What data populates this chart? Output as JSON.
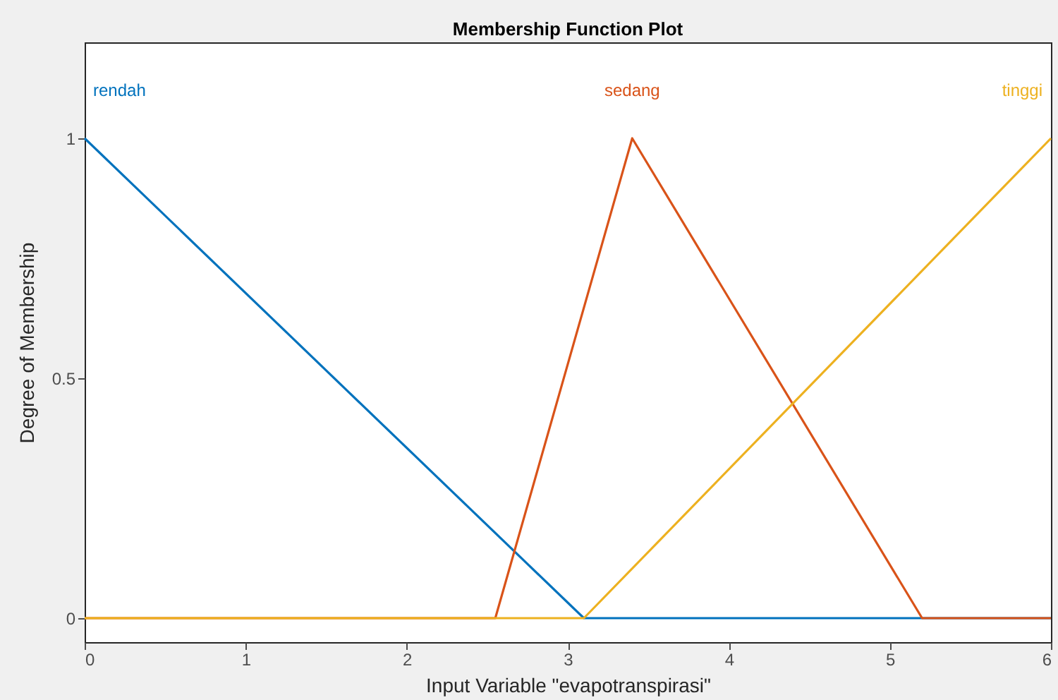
{
  "chart_data": {
    "type": "line",
    "title": "Membership Function Plot",
    "xlabel": "Input Variable \"evapotranspirasi\"",
    "ylabel": "Degree of Membership",
    "xlim": [
      0,
      6
    ],
    "ylim": [
      -0.05,
      1.2
    ],
    "xticks": [
      0,
      1,
      2,
      3,
      4,
      5,
      6
    ],
    "yticks": [
      0,
      0.5,
      1
    ],
    "grid": false,
    "legend": false,
    "series": [
      {
        "name": "rendah",
        "color": "#0072bd",
        "x": [
          0,
          3.1,
          6
        ],
        "values": [
          1,
          0,
          0
        ]
      },
      {
        "name": "sedang",
        "color": "#d95319",
        "x": [
          0,
          2.55,
          3.4,
          5.2,
          6
        ],
        "values": [
          0,
          0,
          1,
          0,
          0
        ]
      },
      {
        "name": "tinggi",
        "color": "#edb120",
        "x": [
          0,
          3.1,
          6
        ],
        "values": [
          0,
          0,
          1
        ]
      }
    ]
  }
}
